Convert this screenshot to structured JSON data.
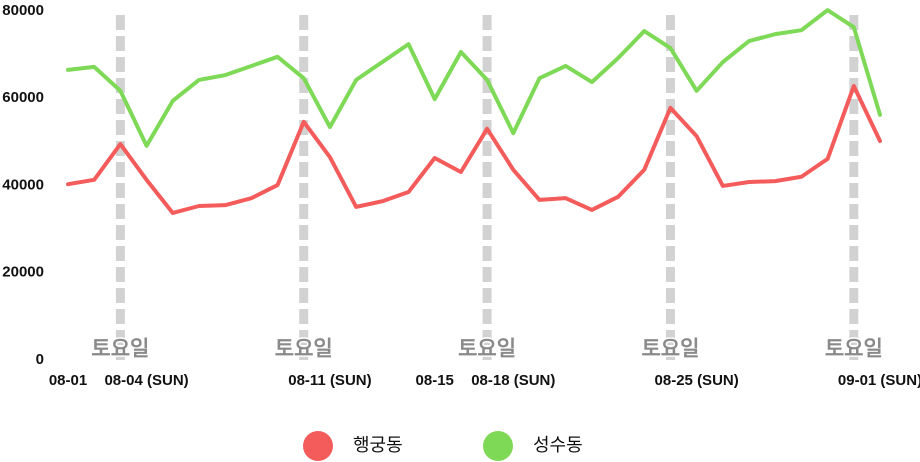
{
  "chart_data": {
    "type": "line",
    "categories": [
      "08-01",
      null,
      null,
      "08-04 (SUN)",
      null,
      null,
      null,
      null,
      null,
      null,
      "08-11 (SUN)",
      null,
      null,
      null,
      "08-15",
      null,
      null,
      "08-18 (SUN)",
      null,
      null,
      null,
      null,
      null,
      null,
      "08-25 (SUN)",
      null,
      null,
      null,
      null,
      null,
      null,
      "09-01 (SUN)"
    ],
    "series": [
      {
        "name": "행궁동",
        "color": "#f45b5b",
        "values": [
          40300,
          41300,
          49500,
          41300,
          33700,
          35300,
          35500,
          37100,
          40100,
          54600,
          46500,
          35100,
          36400,
          38500,
          46300,
          43100,
          53000,
          43600,
          36700,
          37100,
          34400,
          37400,
          43600,
          57800,
          51300,
          39900,
          40800,
          41000,
          42000,
          46100,
          62800,
          50200
        ]
      },
      {
        "name": "성수동",
        "color": "#7ed957",
        "values": [
          66500,
          67200,
          61700,
          49100,
          59400,
          64200,
          65300,
          67400,
          69500,
          64600,
          53400,
          64200,
          68300,
          72400,
          59800,
          70600,
          64200,
          52000,
          64600,
          67400,
          63700,
          69200,
          75400,
          71500,
          61700,
          68300,
          73100,
          74700,
          75600,
          80200,
          76300,
          56200
        ]
      }
    ],
    "markers": [
      {
        "index": 2,
        "label": "토요일"
      },
      {
        "index": 9,
        "label": "토요일"
      },
      {
        "index": 16,
        "label": "토요일"
      },
      {
        "index": 23,
        "label": "토요일"
      },
      {
        "index": 30,
        "label": "토요일"
      }
    ],
    "marker_color": "#d2d2d2",
    "ylim": [
      0,
      80000
    ],
    "yticks": [
      0,
      20000,
      40000,
      60000,
      80000
    ],
    "grid": false
  }
}
